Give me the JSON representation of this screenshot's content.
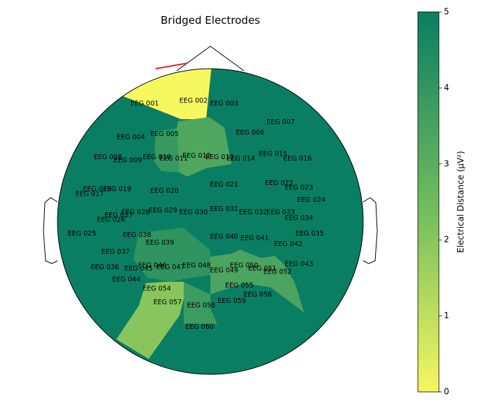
{
  "chart_data": {
    "type": "topomap",
    "title": "Bridged Electrodes",
    "colorbar": {
      "label": "Electrical Distance (μV²)",
      "range": [
        0,
        5
      ],
      "ticks": [
        "0",
        "1",
        "2",
        "3",
        "4",
        "5"
      ],
      "colors": [
        "#f7f75f",
        "#7ac05d",
        "#0a7e62"
      ]
    },
    "background_value": 5,
    "bridges": [
      [
        "EEG 001",
        "EEG 002"
      ]
    ],
    "electrodes": [
      {
        "name": "EEG 001",
        "x": -0.43,
        "y": 0.77
      },
      {
        "name": "EEG 002",
        "x": -0.11,
        "y": 0.79
      },
      {
        "name": "EEG 003",
        "x": 0.09,
        "y": 0.77
      },
      {
        "name": "EEG 004",
        "x": -0.52,
        "y": 0.55
      },
      {
        "name": "EEG 005",
        "x": -0.3,
        "y": 0.57
      },
      {
        "name": "EEG 006",
        "x": 0.26,
        "y": 0.58
      },
      {
        "name": "EEG 007",
        "x": 0.46,
        "y": 0.65
      },
      {
        "name": "EEG 008",
        "x": -0.67,
        "y": 0.42
      },
      {
        "name": "EEG 009",
        "x": -0.54,
        "y": 0.4
      },
      {
        "name": "EEG 010",
        "x": -0.35,
        "y": 0.42
      },
      {
        "name": "EEG 011",
        "x": -0.24,
        "y": 0.41
      },
      {
        "name": "EEG 012",
        "x": -0.09,
        "y": 0.43
      },
      {
        "name": "EEG 013",
        "x": 0.06,
        "y": 0.42
      },
      {
        "name": "EEG 014",
        "x": 0.2,
        "y": 0.41
      },
      {
        "name": "EEG 015",
        "x": 0.41,
        "y": 0.44
      },
      {
        "name": "EEG 016",
        "x": 0.57,
        "y": 0.41
      },
      {
        "name": "EEG 017",
        "x": -0.79,
        "y": 0.18
      },
      {
        "name": "EEG 018",
        "x": -0.74,
        "y": 0.21
      },
      {
        "name": "EEG 019",
        "x": -0.61,
        "y": 0.21
      },
      {
        "name": "EEG 020",
        "x": -0.3,
        "y": 0.2
      },
      {
        "name": "EEG 021",
        "x": 0.09,
        "y": 0.24
      },
      {
        "name": "EEG 022",
        "x": 0.45,
        "y": 0.25
      },
      {
        "name": "EEG 023",
        "x": 0.58,
        "y": 0.22
      },
      {
        "name": "EEG 024",
        "x": 0.66,
        "y": 0.14
      },
      {
        "name": "EEG 025",
        "x": -0.84,
        "y": -0.08
      },
      {
        "name": "EEG 026",
        "x": -0.65,
        "y": 0.01
      },
      {
        "name": "EEG 027",
        "x": -0.6,
        "y": 0.04
      },
      {
        "name": "EEG 028",
        "x": -0.49,
        "y": 0.06
      },
      {
        "name": "EEG 029",
        "x": -0.31,
        "y": 0.07
      },
      {
        "name": "EEG 030",
        "x": -0.11,
        "y": 0.06
      },
      {
        "name": "EEG 031",
        "x": 0.09,
        "y": 0.08
      },
      {
        "name": "EEG 032",
        "x": 0.28,
        "y": 0.06
      },
      {
        "name": "EEG 033",
        "x": 0.46,
        "y": 0.06
      },
      {
        "name": "EEG 034",
        "x": 0.58,
        "y": 0.02
      },
      {
        "name": "EEG 035",
        "x": 0.65,
        "y": -0.08
      },
      {
        "name": "EEG 036",
        "x": -0.69,
        "y": -0.3
      },
      {
        "name": "EEG 037",
        "x": -0.62,
        "y": -0.2
      },
      {
        "name": "EEG 038",
        "x": -0.48,
        "y": -0.09
      },
      {
        "name": "EEG 039",
        "x": -0.33,
        "y": -0.14
      },
      {
        "name": "EEG 040",
        "x": 0.09,
        "y": -0.1
      },
      {
        "name": "EEG 041",
        "x": 0.29,
        "y": -0.11
      },
      {
        "name": "EEG 042",
        "x": 0.51,
        "y": -0.15
      },
      {
        "name": "EEG 043",
        "x": 0.58,
        "y": -0.28
      },
      {
        "name": "EEG 044",
        "x": -0.55,
        "y": -0.38
      },
      {
        "name": "EEG 045",
        "x": -0.47,
        "y": -0.31
      },
      {
        "name": "EEG 046",
        "x": -0.38,
        "y": -0.29
      },
      {
        "name": "EEG 047",
        "x": -0.26,
        "y": -0.3
      },
      {
        "name": "EEG 048",
        "x": -0.09,
        "y": -0.29
      },
      {
        "name": "EEG 049",
        "x": 0.09,
        "y": -0.32
      },
      {
        "name": "EEG 050",
        "x": 0.22,
        "y": -0.29
      },
      {
        "name": "EEG 051",
        "x": 0.34,
        "y": -0.31
      },
      {
        "name": "EEG 052",
        "x": 0.44,
        "y": -0.33
      },
      {
        "name": "EEG 055",
        "x": 0.19,
        "y": -0.42
      },
      {
        "name": "EEG 054",
        "x": -0.35,
        "y": -0.44
      },
      {
        "name": "EEG 056",
        "x": 0.31,
        "y": -0.48
      },
      {
        "name": "EEG 057",
        "x": -0.28,
        "y": -0.53
      },
      {
        "name": "EEG 058",
        "x": -0.06,
        "y": -0.55
      },
      {
        "name": "EEG 059",
        "x": 0.14,
        "y": -0.52
      },
      {
        "name": "EEG 060",
        "x": -0.07,
        "y": -0.69
      }
    ]
  }
}
